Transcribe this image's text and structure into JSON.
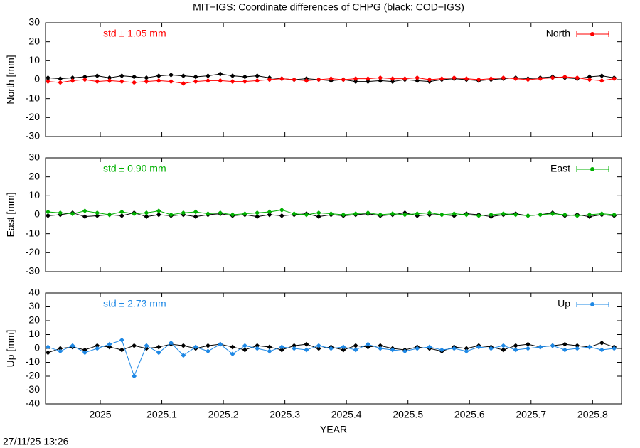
{
  "title": "MIT−IGS: Coordinate differences of CHPG (black: COD−IGS)",
  "footer": "27/11/25 13:26",
  "chart_data": [
    {
      "type": "line",
      "y_label": "North [mm]",
      "annotation": "std ± 1.05 mm",
      "annotation_color": "#ff0000",
      "legend": "upper right",
      "xlim": [
        2024.911,
        2025.847
      ],
      "xticks": [
        2025,
        2025.1,
        2025.2,
        2025.3,
        2025.4,
        2025.5,
        2025.6,
        2025.7,
        2025.8
      ],
      "ylim": [
        -30,
        30
      ],
      "yticks": [
        -30,
        -20,
        -10,
        0,
        10,
        20,
        30
      ],
      "x": [
        2024.915,
        2024.935,
        2024.955,
        2024.975,
        2024.995,
        2025.015,
        2025.035,
        2025.055,
        2025.075,
        2025.095,
        2025.115,
        2025.135,
        2025.155,
        2025.175,
        2025.195,
        2025.215,
        2025.235,
        2025.255,
        2025.275,
        2025.295,
        2025.315,
        2025.335,
        2025.355,
        2025.375,
        2025.395,
        2025.415,
        2025.435,
        2025.455,
        2025.475,
        2025.495,
        2025.515,
        2025.535,
        2025.555,
        2025.575,
        2025.595,
        2025.615,
        2025.635,
        2025.655,
        2025.675,
        2025.695,
        2025.715,
        2025.735,
        2025.755,
        2025.775,
        2025.795,
        2025.815,
        2025.835
      ],
      "series": [
        {
          "color": "#000000",
          "values": [
            1,
            0.5,
            1,
            1.5,
            2,
            1,
            2,
            1.5,
            1,
            2,
            2.5,
            2,
            1.5,
            2,
            3,
            2,
            1.5,
            2,
            1,
            0.5,
            0,
            0.5,
            0,
            -0.5,
            0,
            -1,
            -1,
            -0.5,
            -1,
            0,
            -0.5,
            -1,
            0,
            0.5,
            0,
            -0.5,
            0,
            0.5,
            1,
            0.5,
            1,
            1.5,
            1,
            0.5,
            1.5,
            2,
            1
          ]
        },
        {
          "name": "North",
          "color": "#ff0000",
          "values": [
            -1,
            -1.5,
            -0.5,
            0,
            -1,
            -0.5,
            -1,
            -1.5,
            -1,
            -0.5,
            -1,
            -2,
            -1,
            -0.5,
            -0.5,
            -1,
            -1,
            -0.5,
            0,
            0.5,
            0,
            -0.5,
            0,
            0.5,
            0,
            0.5,
            0.5,
            1,
            0.5,
            0.5,
            1,
            0,
            0.5,
            1,
            0.5,
            0,
            0.5,
            1,
            0.5,
            0,
            0.5,
            1,
            1.5,
            1,
            0,
            -0.5,
            0.5
          ]
        }
      ]
    },
    {
      "type": "line",
      "y_label": "East [mm]",
      "annotation": "std ± 0.90 mm",
      "annotation_color": "#00b000",
      "legend": "upper right",
      "xlim": [
        2024.911,
        2025.847
      ],
      "xticks": [
        2025,
        2025.1,
        2025.2,
        2025.3,
        2025.4,
        2025.5,
        2025.6,
        2025.7,
        2025.8
      ],
      "ylim": [
        -30,
        30
      ],
      "yticks": [
        -30,
        -20,
        -10,
        0,
        10,
        20,
        30
      ],
      "x": [
        2024.915,
        2024.935,
        2024.955,
        2024.975,
        2024.995,
        2025.015,
        2025.035,
        2025.055,
        2025.075,
        2025.095,
        2025.115,
        2025.135,
        2025.155,
        2025.175,
        2025.195,
        2025.215,
        2025.235,
        2025.255,
        2025.275,
        2025.295,
        2025.315,
        2025.335,
        2025.355,
        2025.375,
        2025.395,
        2025.415,
        2025.435,
        2025.455,
        2025.475,
        2025.495,
        2025.515,
        2025.535,
        2025.555,
        2025.575,
        2025.595,
        2025.615,
        2025.635,
        2025.655,
        2025.675,
        2025.695,
        2025.715,
        2025.735,
        2025.755,
        2025.775,
        2025.795,
        2025.815,
        2025.835
      ],
      "series": [
        {
          "color": "#000000",
          "values": [
            -0.5,
            0,
            1,
            -1,
            -0.5,
            0,
            -0.5,
            1,
            -1,
            0,
            -0.5,
            0,
            -1,
            0,
            0.5,
            -0.5,
            0,
            -1,
            0,
            -0.5,
            0,
            0.5,
            -1,
            0,
            -0.5,
            0,
            0.5,
            -0.5,
            0,
            1,
            -0.5,
            0,
            0,
            -0.5,
            0.5,
            0,
            -1,
            0,
            0.5,
            -0.5,
            0,
            1,
            -0.5,
            0,
            -1,
            0,
            -0.5
          ]
        },
        {
          "name": "East",
          "color": "#00b000",
          "values": [
            1.5,
            1,
            0.5,
            2,
            1,
            0,
            1.5,
            0.5,
            1,
            2,
            0,
            1,
            1.5,
            0.5,
            1,
            0,
            0.5,
            1,
            1.5,
            2.5,
            0.5,
            0,
            1,
            0.5,
            0,
            0.5,
            1,
            0,
            0.5,
            0,
            0.5,
            1,
            0,
            0.5,
            0,
            -0.5,
            0,
            0.5,
            0,
            -0.5,
            0,
            0.5,
            0,
            -0.5,
            0,
            0.5,
            0
          ]
        }
      ]
    },
    {
      "type": "line",
      "y_label": "Up [mm]",
      "x_label": "YEAR",
      "annotation": "std ± 2.73 mm",
      "annotation_color": "#1e88e5",
      "legend": "upper right",
      "xlim": [
        2024.911,
        2025.847
      ],
      "xticks": [
        2025,
        2025.1,
        2025.2,
        2025.3,
        2025.4,
        2025.5,
        2025.6,
        2025.7,
        2025.8
      ],
      "ylim": [
        -40,
        40
      ],
      "yticks": [
        -40,
        -30,
        -20,
        -10,
        0,
        10,
        20,
        30,
        40
      ],
      "x": [
        2024.915,
        2024.935,
        2024.955,
        2024.975,
        2024.995,
        2025.015,
        2025.035,
        2025.055,
        2025.075,
        2025.095,
        2025.115,
        2025.135,
        2025.155,
        2025.175,
        2025.195,
        2025.215,
        2025.235,
        2025.255,
        2025.275,
        2025.295,
        2025.315,
        2025.335,
        2025.355,
        2025.375,
        2025.395,
        2025.415,
        2025.435,
        2025.455,
        2025.475,
        2025.495,
        2025.515,
        2025.535,
        2025.555,
        2025.575,
        2025.595,
        2025.615,
        2025.635,
        2025.655,
        2025.675,
        2025.695,
        2025.715,
        2025.735,
        2025.755,
        2025.775,
        2025.795,
        2025.815,
        2025.835
      ],
      "series": [
        {
          "color": "#000000",
          "values": [
            -3,
            0,
            1,
            -1,
            2,
            1,
            -1,
            2,
            0,
            1,
            3,
            2,
            0,
            2,
            3,
            1,
            -1,
            2,
            1,
            -1,
            2,
            3,
            0,
            1,
            -1,
            2,
            1,
            2,
            0,
            -1,
            1,
            0,
            -2,
            1,
            0,
            2,
            1,
            -1,
            2,
            3,
            1,
            2,
            3,
            2,
            1,
            4,
            1
          ]
        },
        {
          "name": "Up",
          "color": "#1e88e5",
          "values": [
            1,
            -2,
            2,
            -3,
            0,
            3,
            6,
            -20,
            2,
            -3,
            4,
            -5,
            1,
            -2,
            3,
            -4,
            2,
            0,
            -2,
            1,
            0,
            -1,
            2,
            0,
            1,
            -1,
            3,
            0,
            -1,
            -2,
            0,
            1,
            -1,
            0,
            -2,
            1,
            0,
            2,
            -1,
            0,
            1,
            2,
            -1,
            0,
            1,
            -1,
            0
          ]
        }
      ]
    }
  ]
}
